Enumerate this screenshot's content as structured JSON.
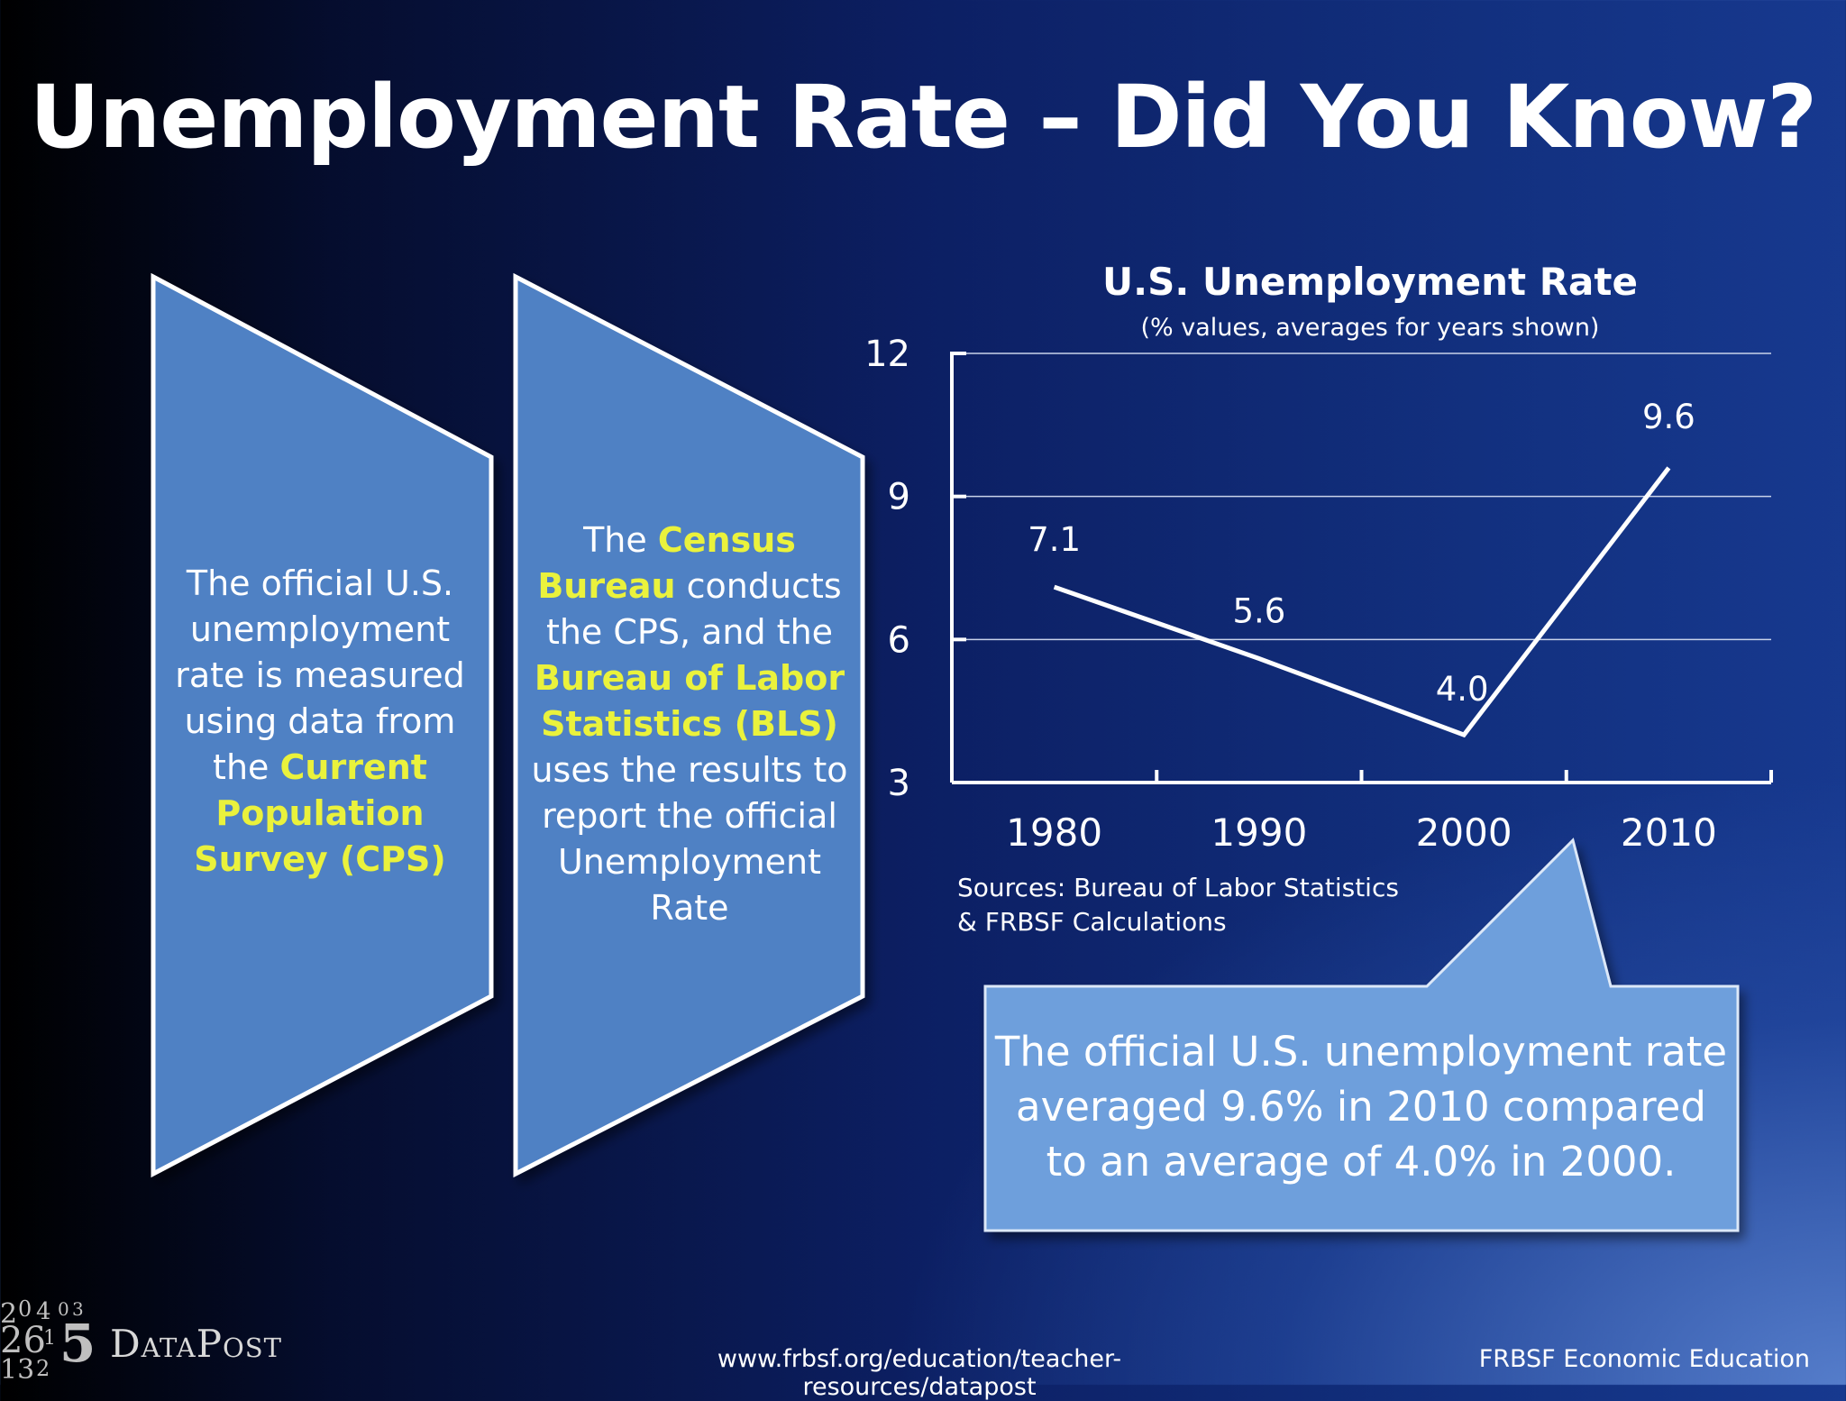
{
  "slide": {
    "title": "Unemployment Rate – Did You Know?"
  },
  "panel1": {
    "text_before": "The official U.S. unemployment rate is measured using data from the",
    "highlight": "Current Population Survey (CPS)"
  },
  "panel2": {
    "text_1": "The",
    "highlight_1": "Census Bureau",
    "text_2": "conducts the CPS, and the",
    "highlight_2": "Bureau of Labor Statistics (BLS)",
    "text_3": "uses the results to report the official Unemployment Rate"
  },
  "chart_data": {
    "type": "line",
    "title": "U.S. Unemployment Rate",
    "subtitle": "(% values, averages for years shown)",
    "categories": [
      "1980",
      "1990",
      "2000",
      "2010"
    ],
    "values": [
      7.1,
      5.6,
      4.0,
      9.6
    ],
    "value_labels": [
      "7.1",
      "5.6",
      "4.0",
      "9.6"
    ],
    "ylim": [
      3,
      12
    ],
    "yticks": [
      3,
      6,
      9,
      12
    ],
    "ytick_labels": [
      "3",
      "6",
      "9",
      "12"
    ],
    "grid": true,
    "line_color": "#ffffff",
    "sources": [
      "Sources: Bureau of Labor Statistics",
      "& FRBSF Calculations"
    ]
  },
  "callout": {
    "text": "The official U.S. unemployment rate averaged 9.6% in 2010 compared to an average of 4.0% in 2000."
  },
  "footer": {
    "logo_text": "DataPost",
    "url": "www.frbsf.org/education/teacher-resources/datapost",
    "org": "FRBSF Economic Education"
  },
  "colors": {
    "panel_fill": "#4f81c4",
    "highlight": "#eaf23c",
    "callout_fill": "#6e9fdc"
  }
}
